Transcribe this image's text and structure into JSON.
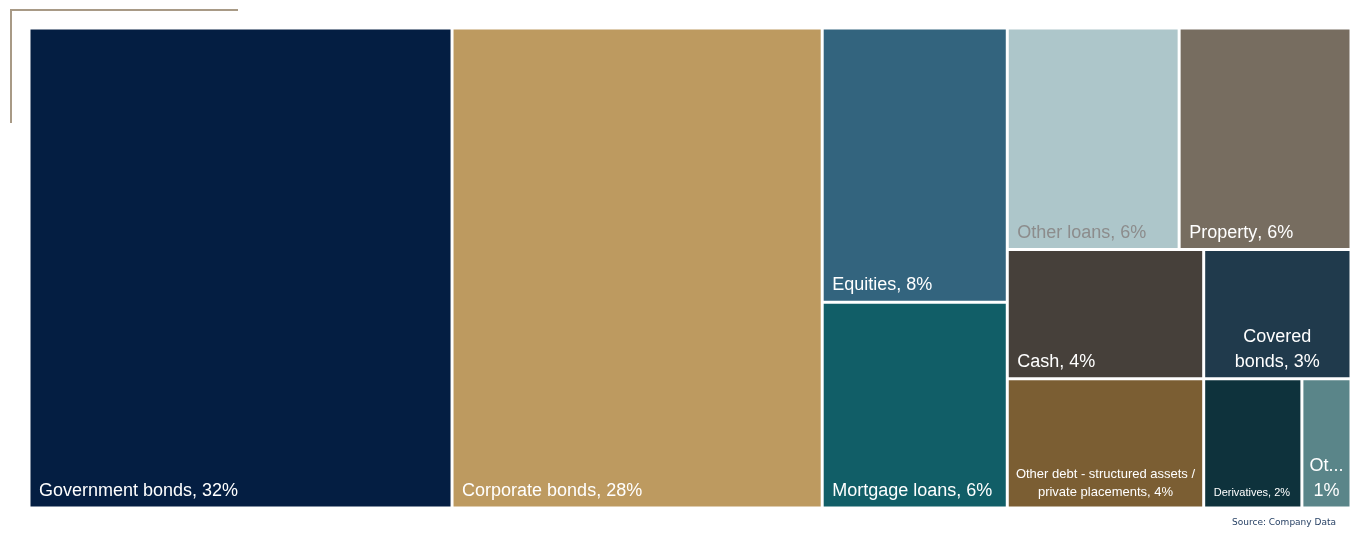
{
  "chart_data": {
    "type": "other",
    "categories": [
      "Government bonds",
      "Corporate bonds",
      "Equities",
      "Mortgage loans",
      "Other loans",
      "Property",
      "Cash",
      "Other debt - structured assets / private placements",
      "Covered bonds",
      "Derivatives",
      "Ot..."
    ],
    "values": [
      32,
      28,
      8,
      6,
      6,
      6,
      4,
      4,
      3,
      2,
      1
    ],
    "value_labels": [
      ", 32%",
      ", 28%",
      ", 8%",
      ", 6%",
      ", 6%",
      ", 6%",
      ", 4%",
      ", 4%",
      ", 3%",
      ", 2%",
      " 1%"
    ],
    "colors": [
      "#041e42",
      "#bd9a60",
      "#33647e",
      "#115e67",
      "#adc6ca",
      "#776d60",
      "#46403a",
      "#7b5e33",
      "#203a4c",
      "#0e323c",
      "#5a8589"
    ],
    "annotations": [
      "Source: Company Data"
    ]
  }
}
